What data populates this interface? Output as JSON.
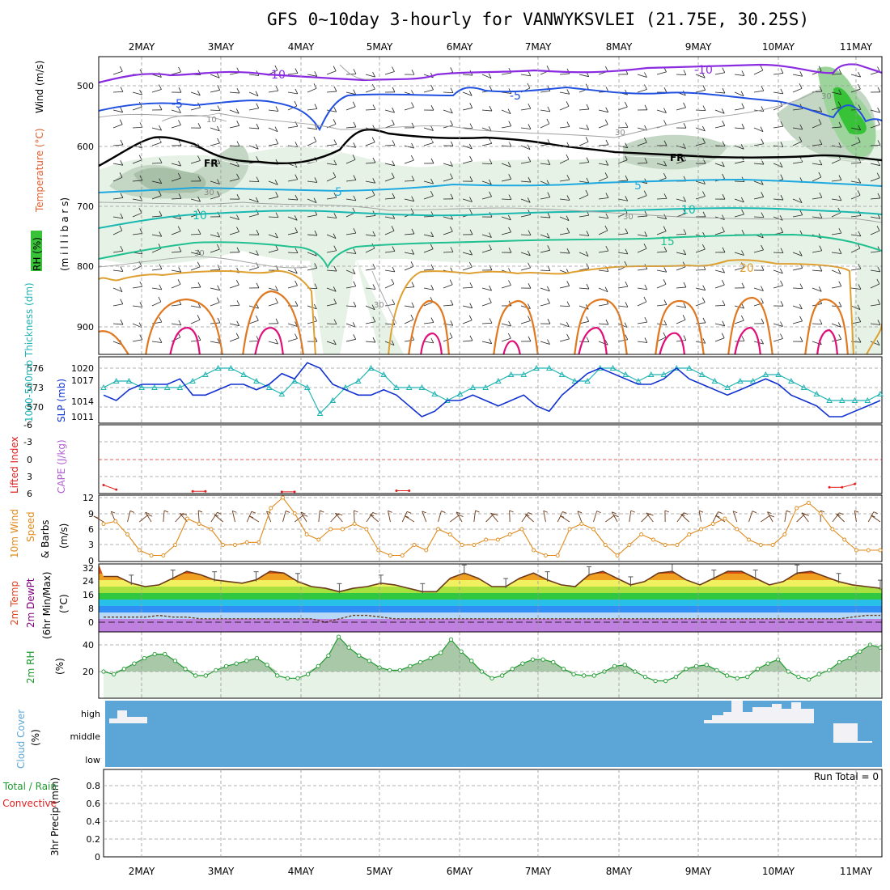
{
  "title": "GFS 0~10day 3-hourly for VANWYKSVLEI (21.75E, 30.25S)",
  "dates": [
    "2MAY",
    "3MAY",
    "4MAY",
    "5MAY",
    "6MAY",
    "7MAY",
    "8MAY",
    "9MAY",
    "10MAY",
    "11MAY"
  ],
  "colors": {
    "dew": "#800080",
    "rh": "#1f9a2f",
    "slp": "#1030d0",
    "thick": "#20b4b4",
    "wind": "#e08a1a",
    "cape": "#a040c0",
    "li": "#e02020",
    "cloud": "#5ba6d6"
  },
  "panels": {
    "upper": {
      "label_rh": "RH (%)",
      "label_temp": "Temperature (°C)",
      "label_wind": "Wind (m/s)",
      "label_mb": "(m i l l i b a r s)",
      "yticks": [
        "500",
        "600",
        "700",
        "800",
        "900"
      ],
      "contour_labels": [
        "-10",
        "-10",
        "-5",
        "-5",
        "10",
        "30",
        "30",
        "30",
        "30",
        "30",
        "30",
        "FR",
        "FR",
        "5",
        "5",
        "10",
        "10",
        "15",
        "20",
        "30",
        "30"
      ]
    },
    "slp": {
      "label_thick": "1000-500mb Thickness (dm)",
      "label_slp": "SLP (mb)",
      "yticks_left": [
        "576",
        "573",
        "570"
      ],
      "yticks_right": [
        "1020",
        "1017",
        "1014",
        "1011"
      ]
    },
    "cape": {
      "label_li": "Lifted Index",
      "label_cape": "CAPE (J/kg)",
      "yticks": [
        "-6",
        "-3",
        "0",
        "3",
        "6"
      ]
    },
    "wind10": {
      "label": "10m Wind",
      "label2": "Speed",
      "label3": "& Barbs",
      "label4": "(m/s)",
      "yticks": [
        "12",
        "9",
        "6",
        "3",
        "0"
      ]
    },
    "temp": {
      "label": "2m Temp",
      "label2": "2m DewPt",
      "label3": "(6hr Min/Max)",
      "label4": "(°C)",
      "yticks": [
        "32",
        "24",
        "16",
        "8",
        "0"
      ]
    },
    "rh": {
      "label": "2m RH",
      "label2": "(%)",
      "yticks": [
        "40",
        "20"
      ]
    },
    "cloud": {
      "label": "Cloud Cover",
      "label2": "(%)",
      "levels": [
        "high",
        "middle",
        "low"
      ]
    },
    "precip": {
      "label": "3hr Precip (mm)",
      "label2": "Total / Rain",
      "label3": "Convective",
      "run_total": "Run Total = 0",
      "yticks": [
        "0.8",
        "0.6",
        "0.4",
        "0.2",
        "0"
      ]
    }
  },
  "chart_data": [
    {
      "type": "line",
      "title": "1000-500mb Thickness / SLP",
      "series": [
        {
          "name": "SLP (mb)",
          "values": [
            1015,
            1014,
            1016,
            1017,
            1017,
            1017,
            1018,
            1015,
            1015,
            1016,
            1017,
            1017,
            1016,
            1017,
            1019,
            1018,
            1021,
            1020,
            1017,
            1016,
            1015,
            1015,
            1016,
            1015,
            1013,
            1011,
            1012,
            1014,
            1014,
            1015,
            1014,
            1013,
            1014,
            1015,
            1013,
            1012,
            1015,
            1017,
            1019,
            1020,
            1019,
            1018,
            1017,
            1017,
            1018,
            1020,
            1018,
            1017,
            1016,
            1015,
            1016,
            1017,
            1018,
            1017,
            1015,
            1014,
            1013,
            1011,
            1011,
            1012,
            1013,
            1014
          ]
        },
        {
          "name": "1000-500mb Thickness (dm)",
          "values": [
            573,
            574,
            574,
            573,
            573,
            573,
            573,
            574,
            575,
            576,
            576,
            575,
            574,
            573,
            572,
            574,
            573,
            569,
            571,
            573,
            574,
            576,
            575,
            573,
            573,
            573,
            572,
            571,
            572,
            573,
            573,
            574,
            575,
            575,
            576,
            576,
            575,
            574,
            574,
            576,
            576,
            575,
            574,
            575,
            575,
            576,
            576,
            575,
            574,
            573,
            574,
            574,
            575,
            575,
            574,
            573,
            572,
            571,
            571,
            571,
            571,
            572
          ]
        }
      ]
    },
    {
      "type": "line",
      "title": "Lifted Index",
      "values": [
        4.5,
        5.3,
        null,
        null,
        null,
        null,
        null,
        5.6,
        5.6,
        null,
        null,
        null,
        null,
        null,
        5.7,
        5.7,
        null,
        null,
        null,
        null,
        null,
        null,
        null,
        5.5,
        5.5,
        null,
        null,
        null,
        null,
        null,
        null,
        null,
        null,
        null,
        null,
        null,
        null,
        null,
        null,
        null,
        null,
        null,
        null,
        null,
        null,
        null,
        null,
        null,
        null,
        null,
        null,
        null,
        null,
        null,
        null,
        null,
        null,
        4.9,
        4.9,
        4.3,
        null,
        null
      ],
      "ylim": [
        6,
        -6
      ]
    },
    {
      "type": "line",
      "title": "10m Wind Speed (m/s)",
      "values": [
        7,
        7.5,
        5,
        2,
        1,
        1,
        3,
        8,
        7,
        6,
        3,
        3,
        3.5,
        3.5,
        10,
        12,
        9,
        5,
        4,
        6,
        6,
        7,
        6,
        2,
        1,
        1,
        3,
        2,
        6,
        5,
        3,
        3,
        4,
        4,
        5,
        6,
        2,
        1,
        1,
        6,
        7,
        6,
        3,
        1,
        3,
        5,
        4,
        3,
        3,
        5,
        6,
        7,
        8,
        6,
        4,
        3,
        3,
        5,
        10,
        11,
        9,
        6,
        4,
        2,
        2,
        2
      ],
      "ylim": [
        0,
        12
      ]
    },
    {
      "type": "area",
      "title": "2m Temp (°C)",
      "values": [
        27,
        27,
        23,
        21,
        22,
        26,
        30,
        28,
        25,
        24,
        23,
        25,
        30,
        29,
        24,
        21,
        20,
        18,
        20,
        21,
        23,
        22,
        20,
        18,
        18,
        26,
        29,
        26,
        21,
        21,
        26,
        29,
        25,
        22,
        21,
        28,
        30,
        26,
        22,
        24,
        29,
        30,
        25,
        22,
        26,
        30,
        30,
        26,
        22,
        24,
        29,
        30,
        27,
        24,
        22,
        21,
        20
      ],
      "ylim": [
        0,
        33
      ]
    },
    {
      "type": "line",
      "title": "2m DewPt (°C)",
      "values": [
        3,
        3,
        3,
        3,
        4,
        3,
        3,
        2,
        2,
        2,
        2,
        2,
        2,
        2,
        2,
        2,
        0,
        2,
        4,
        4,
        3,
        2,
        2,
        2,
        2,
        2,
        2,
        2,
        2,
        2,
        2,
        2,
        2,
        2,
        2,
        2,
        2,
        2,
        2,
        2,
        2,
        2,
        2,
        2,
        2,
        2,
        2,
        2,
        2,
        2,
        2,
        2,
        2,
        2,
        3,
        4,
        4
      ],
      "ylim": [
        0,
        33
      ]
    },
    {
      "type": "area",
      "title": "2m RH (%)",
      "values": [
        20,
        18,
        22,
        26,
        30,
        33,
        33,
        28,
        22,
        17,
        17,
        21,
        24,
        26,
        28,
        30,
        25,
        17,
        15,
        15,
        18,
        24,
        32,
        46,
        38,
        32,
        28,
        23,
        21,
        21,
        24,
        27,
        30,
        34,
        44,
        35,
        28,
        20,
        15,
        17,
        22,
        26,
        29,
        29,
        27,
        22,
        18,
        17,
        17,
        20,
        24,
        25,
        20,
        16,
        13,
        13,
        16,
        22,
        24,
        25,
        21,
        17,
        15,
        16,
        22,
        26,
        29,
        20,
        16,
        14,
        18,
        21,
        27,
        30,
        35,
        40,
        38
      ],
      "ylim": [
        0,
        48
      ]
    }
  ]
}
